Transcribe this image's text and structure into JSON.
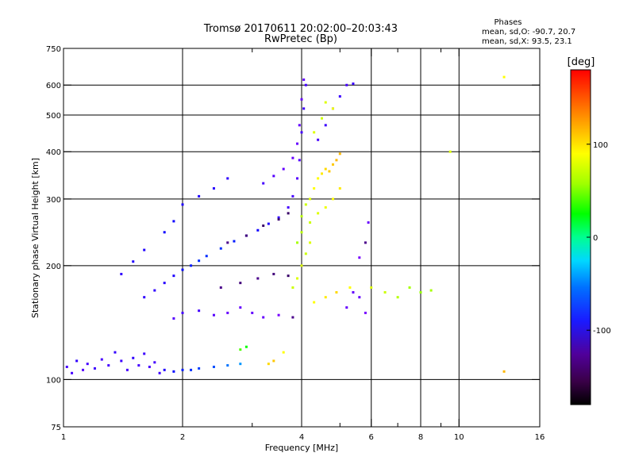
{
  "chart_data": {
    "type": "scatter",
    "title": "Tromsø 20170611 20:02:00–20:03:43",
    "subtitle": "RwPretec (Bp)",
    "xlabel": "Frequency [MHz]",
    "ylabel": "Stationary phase Virtual Height [km]",
    "x_scale": "log",
    "y_scale": "log",
    "xlim": [
      1,
      16
    ],
    "ylim": [
      75,
      750
    ],
    "x_ticks": [
      1,
      2,
      4,
      6,
      8,
      10,
      16
    ],
    "x_minor_ticks": [
      3,
      5,
      7,
      9
    ],
    "y_ticks": [
      75,
      100,
      200,
      300,
      400,
      500,
      600,
      750
    ],
    "grid": true,
    "stats": {
      "heading": "Phases",
      "o_label": "mean, sd,O: -90.7, 20.7",
      "x_label": "mean, sd,X:  93.5, 23.1"
    },
    "colorbar": {
      "label": "[deg]",
      "ticks": [
        100,
        0,
        -100
      ],
      "range": [
        -180,
        180
      ],
      "colormap": "rainbow"
    },
    "series": [
      {
        "name": "",
        "approximate": true,
        "color_value": -120,
        "points": [
          [
            1.02,
            108,
            -120
          ],
          [
            1.05,
            104,
            -120
          ],
          [
            1.08,
            112,
            -115
          ],
          [
            1.12,
            106,
            -125
          ],
          [
            1.15,
            110,
            -120
          ],
          [
            1.2,
            107,
            -118
          ],
          [
            1.25,
            113,
            -122
          ],
          [
            1.3,
            109,
            -120
          ],
          [
            1.35,
            118,
            -116
          ],
          [
            1.4,
            112,
            -118
          ],
          [
            1.45,
            106,
            -120
          ],
          [
            1.5,
            114,
            -115
          ],
          [
            1.55,
            109,
            -120
          ],
          [
            1.6,
            117,
            -118
          ],
          [
            1.65,
            108,
            -122
          ],
          [
            1.7,
            111,
            -120
          ],
          [
            1.75,
            104,
            -118
          ],
          [
            1.8,
            106,
            -110
          ],
          [
            1.9,
            105,
            -100
          ],
          [
            2.0,
            106,
            -95
          ],
          [
            2.1,
            106,
            -90
          ],
          [
            2.2,
            107,
            -85
          ],
          [
            2.4,
            108,
            -80
          ],
          [
            2.6,
            109,
            -70
          ],
          [
            2.8,
            110,
            -60
          ],
          [
            1.6,
            165,
            -115
          ],
          [
            1.7,
            172,
            -115
          ],
          [
            1.8,
            180,
            -112
          ],
          [
            1.9,
            188,
            -110
          ],
          [
            2.0,
            195,
            -100
          ],
          [
            2.1,
            200,
            -95
          ],
          [
            2.2,
            206,
            -90
          ],
          [
            2.3,
            212,
            -90
          ],
          [
            2.5,
            222,
            -90
          ],
          [
            2.7,
            232,
            -95
          ],
          [
            2.9,
            240,
            -100
          ],
          [
            3.1,
            248,
            -105
          ],
          [
            3.3,
            258,
            -110
          ],
          [
            3.5,
            268,
            -115
          ],
          [
            3.7,
            285,
            -120
          ],
          [
            3.8,
            305,
            -120
          ],
          [
            3.9,
            340,
            -125
          ],
          [
            3.95,
            380,
            -125
          ],
          [
            4.0,
            450,
            -120
          ],
          [
            4.05,
            520,
            -118
          ],
          [
            4.1,
            600,
            -120
          ],
          [
            1.4,
            190,
            -115
          ],
          [
            1.5,
            205,
            -110
          ],
          [
            1.6,
            220,
            -110
          ],
          [
            1.8,
            245,
            -105
          ],
          [
            1.9,
            262,
            -105
          ],
          [
            2.0,
            290,
            -110
          ],
          [
            2.2,
            305,
            -110
          ],
          [
            2.4,
            320,
            -112
          ],
          [
            2.6,
            340,
            -115
          ],
          [
            3.2,
            330,
            -120
          ],
          [
            3.4,
            345,
            -125
          ],
          [
            3.6,
            360,
            -128
          ],
          [
            3.8,
            385,
            -130
          ],
          [
            3.9,
            420,
            -130
          ],
          [
            3.95,
            470,
            -128
          ],
          [
            4.0,
            550,
            -130
          ],
          [
            4.05,
            620,
            -128
          ],
          [
            1.9,
            145,
            -125
          ],
          [
            2.0,
            150,
            -120
          ],
          [
            2.2,
            152,
            -120
          ],
          [
            2.4,
            148,
            -125
          ],
          [
            2.6,
            150,
            -130
          ],
          [
            2.8,
            155,
            -130
          ],
          [
            3.0,
            150,
            -128
          ],
          [
            3.2,
            146,
            -130
          ],
          [
            3.5,
            148,
            -135
          ],
          [
            3.8,
            146,
            -140
          ],
          [
            2.5,
            175,
            -140
          ],
          [
            2.8,
            180,
            -145
          ],
          [
            3.1,
            185,
            -140
          ],
          [
            3.4,
            190,
            -145
          ],
          [
            3.7,
            188,
            -150
          ],
          [
            2.6,
            230,
            -140
          ],
          [
            2.9,
            240,
            -145
          ],
          [
            3.2,
            255,
            -150
          ],
          [
            3.5,
            265,
            -148
          ],
          [
            3.7,
            275,
            -150
          ],
          [
            4.4,
            430,
            -120
          ],
          [
            4.6,
            470,
            -118
          ],
          [
            4.8,
            520,
            -120
          ],
          [
            5.0,
            560,
            -118
          ],
          [
            5.2,
            600,
            -120
          ],
          [
            5.4,
            605,
            -118
          ],
          [
            5.2,
            155,
            -130
          ],
          [
            5.4,
            170,
            -128
          ],
          [
            5.6,
            165,
            -130
          ],
          [
            5.8,
            150,
            -135
          ],
          [
            5.6,
            210,
            -135
          ],
          [
            5.8,
            230,
            -140
          ],
          [
            5.9,
            260,
            -130
          ]
        ]
      },
      {
        "name": "",
        "approximate": true,
        "color_value": 100,
        "points": [
          [
            4.0,
            270,
            90
          ],
          [
            4.1,
            290,
            95
          ],
          [
            4.2,
            300,
            100
          ],
          [
            4.3,
            320,
            110
          ],
          [
            4.4,
            340,
            110
          ],
          [
            4.5,
            350,
            115
          ],
          [
            4.6,
            360,
            120
          ],
          [
            4.7,
            355,
            125
          ],
          [
            4.8,
            370,
            125
          ],
          [
            4.9,
            380,
            130
          ],
          [
            5.0,
            395,
            130
          ],
          [
            3.9,
            230,
            85
          ],
          [
            4.0,
            245,
            90
          ],
          [
            4.2,
            260,
            95
          ],
          [
            4.4,
            275,
            100
          ],
          [
            4.6,
            285,
            105
          ],
          [
            4.8,
            300,
            110
          ],
          [
            5.0,
            320,
            115
          ],
          [
            3.8,
            175,
            95
          ],
          [
            3.9,
            185,
            100
          ],
          [
            4.0,
            200,
            100
          ],
          [
            4.1,
            215,
            95
          ],
          [
            4.2,
            230,
            100
          ],
          [
            4.3,
            450,
            100
          ],
          [
            4.5,
            490,
            95
          ],
          [
            4.6,
            540,
            100
          ],
          [
            4.8,
            520,
            105
          ],
          [
            4.3,
            160,
            110
          ],
          [
            4.6,
            165,
            115
          ],
          [
            4.9,
            170,
            120
          ],
          [
            5.3,
            175,
            110
          ],
          [
            6.0,
            175,
            100
          ],
          [
            6.5,
            170,
            95
          ],
          [
            7.0,
            165,
            90
          ],
          [
            7.5,
            175,
            85
          ],
          [
            8.0,
            170,
            80
          ],
          [
            8.5,
            172,
            85
          ],
          [
            3.3,
            110,
            120
          ],
          [
            3.4,
            112,
            125
          ],
          [
            3.6,
            118,
            110
          ],
          [
            2.8,
            120,
            60
          ],
          [
            2.9,
            122,
            40
          ],
          [
            13.0,
            630,
            110
          ],
          [
            13.0,
            105,
            130
          ],
          [
            9.5,
            400,
            100
          ]
        ]
      }
    ]
  }
}
